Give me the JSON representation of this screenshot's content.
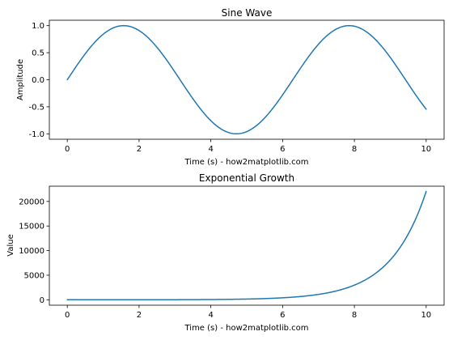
{
  "chart_data": [
    {
      "type": "line",
      "title": "Sine Wave",
      "xlabel": "Time (s) - how2matplotlib.com",
      "ylabel": "Amplitude",
      "xlim": [
        -0.5,
        10.5
      ],
      "ylim": [
        -1.1,
        1.1
      ],
      "xticks": [
        0,
        2,
        4,
        6,
        8,
        10
      ],
      "xtick_labels": [
        "0",
        "2",
        "4",
        "6",
        "8",
        "10"
      ],
      "yticks": [
        1.0,
        0.5,
        0.0,
        -0.5,
        -1.0
      ],
      "ytick_labels": [
        "1.0",
        "0.5",
        "0.0",
        "-0.5",
        "-1.0"
      ],
      "grid": false,
      "color": "#1f77b4",
      "series": [
        {
          "function": "sin",
          "x": [
            0,
            0.25,
            0.5,
            0.75,
            1.0,
            1.25,
            1.5,
            1.75,
            2.0,
            2.25,
            2.5,
            2.75,
            3.0,
            3.25,
            3.5,
            3.75,
            4.0,
            4.25,
            4.5,
            4.75,
            5.0,
            5.25,
            5.5,
            5.75,
            6.0,
            6.25,
            6.5,
            6.75,
            7.0,
            7.25,
            7.5,
            7.75,
            8.0,
            8.25,
            8.5,
            8.75,
            9.0,
            9.25,
            9.5,
            9.75,
            10.0
          ],
          "y": [
            0.0,
            0.247,
            0.479,
            0.682,
            0.841,
            0.949,
            0.997,
            0.984,
            0.909,
            0.778,
            0.598,
            0.382,
            0.141,
            -0.108,
            -0.351,
            -0.572,
            -0.757,
            -0.895,
            -0.978,
            -0.999,
            -0.959,
            -0.859,
            -0.706,
            -0.508,
            -0.279,
            -0.033,
            0.215,
            0.45,
            0.657,
            0.823,
            0.938,
            0.994,
            0.989,
            0.923,
            0.798,
            0.624,
            0.412,
            0.174,
            -0.075,
            -0.319,
            -0.544
          ]
        }
      ]
    },
    {
      "type": "line",
      "title": "Exponential Growth",
      "xlabel": "Time (s) - how2matplotlib.com",
      "ylabel": "Value",
      "xlim": [
        -0.5,
        10.5
      ],
      "ylim": [
        -1100,
        23100
      ],
      "xticks": [
        0,
        2,
        4,
        6,
        8,
        10
      ],
      "xtick_labels": [
        "0",
        "2",
        "4",
        "6",
        "8",
        "10"
      ],
      "yticks": [
        20000,
        15000,
        10000,
        5000,
        0
      ],
      "ytick_labels": [
        "20000",
        "15000",
        "10000",
        "5000",
        "0"
      ],
      "grid": false,
      "color": "#1f77b4",
      "series": [
        {
          "function": "exp",
          "x": [
            0,
            0.5,
            1.0,
            1.5,
            2.0,
            2.5,
            3.0,
            3.5,
            4.0,
            4.5,
            5.0,
            5.5,
            6.0,
            6.5,
            7.0,
            7.5,
            8.0,
            8.25,
            8.5,
            8.75,
            9.0,
            9.25,
            9.5,
            9.75,
            10.0
          ],
          "y": [
            1,
            1.65,
            2.72,
            4.48,
            7.39,
            12.18,
            20.09,
            33.12,
            54.6,
            90.02,
            148.4,
            244.7,
            403.4,
            665.1,
            1096.6,
            1808.0,
            2981.0,
            3827.6,
            4914.8,
            6310.7,
            8103.1,
            10404.6,
            13359.7,
            17154.2,
            22026.5
          ]
        }
      ]
    }
  ]
}
